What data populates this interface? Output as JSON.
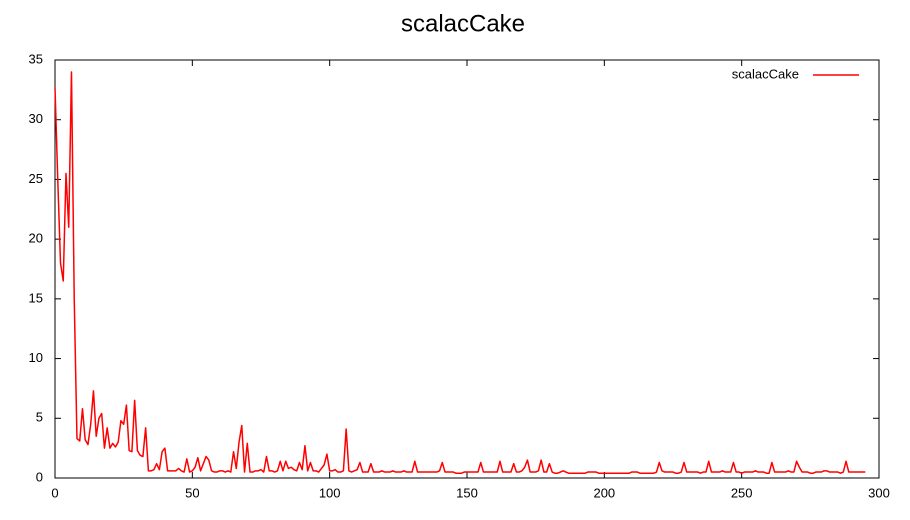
{
  "chart_data": {
    "type": "line",
    "title": "scalacCake",
    "legend": "top-right",
    "grid": false,
    "xlim": [
      0,
      300
    ],
    "xticks": [
      0,
      50,
      100,
      150,
      200,
      250,
      300
    ],
    "ylim": [
      0,
      35
    ],
    "yticks": [
      0,
      5,
      10,
      15,
      20,
      25,
      30,
      35
    ],
    "x": [
      0,
      1,
      2,
      3,
      4,
      5,
      6,
      7,
      8,
      9,
      10,
      11,
      12,
      13,
      14,
      15,
      16,
      17,
      18,
      19,
      20,
      21,
      22,
      23,
      24,
      25,
      26,
      27,
      28,
      29,
      30,
      31,
      32,
      33,
      34,
      35,
      36,
      37,
      38,
      39,
      40,
      41,
      42,
      43,
      44,
      45,
      46,
      47,
      48,
      49,
      50,
      51,
      52,
      53,
      54,
      55,
      56,
      57,
      58,
      59,
      60,
      61,
      62,
      63,
      64,
      65,
      66,
      67,
      68,
      69,
      70,
      71,
      72,
      73,
      74,
      75,
      76,
      77,
      78,
      79,
      80,
      81,
      82,
      83,
      84,
      85,
      86,
      87,
      88,
      89,
      90,
      91,
      92,
      93,
      94,
      95,
      96,
      97,
      98,
      99,
      100,
      101,
      102,
      103,
      104,
      105,
      106,
      107,
      108,
      109,
      110,
      111,
      112,
      113,
      114,
      115,
      116,
      117,
      118,
      119,
      120,
      121,
      122,
      123,
      124,
      125,
      126,
      127,
      128,
      129,
      130,
      131,
      132,
      133,
      134,
      135,
      136,
      137,
      138,
      139,
      140,
      141,
      142,
      143,
      144,
      145,
      146,
      147,
      148,
      149,
      150,
      151,
      152,
      153,
      154,
      155,
      156,
      157,
      158,
      159,
      160,
      161,
      162,
      163,
      164,
      165,
      166,
      167,
      168,
      169,
      170,
      171,
      172,
      173,
      174,
      175,
      176,
      177,
      178,
      179,
      180,
      181,
      182,
      183,
      184,
      185,
      186,
      187,
      188,
      189,
      190,
      191,
      192,
      193,
      194,
      195,
      196,
      197,
      198,
      199,
      200,
      201,
      202,
      203,
      204,
      205,
      206,
      207,
      208,
      209,
      210,
      211,
      212,
      213,
      214,
      215,
      216,
      217,
      218,
      219,
      220,
      221,
      222,
      223,
      224,
      225,
      226,
      227,
      228,
      229,
      230,
      231,
      232,
      233,
      234,
      235,
      236,
      237,
      238,
      239,
      240,
      241,
      242,
      243,
      244,
      245,
      246,
      247,
      248,
      249,
      250,
      251,
      252,
      253,
      254,
      255,
      256,
      257,
      258,
      259,
      260,
      261,
      262,
      263,
      264,
      265,
      266,
      267,
      268,
      269,
      270,
      271,
      272,
      273,
      274,
      275,
      276,
      277,
      278,
      279,
      280,
      281,
      282,
      283,
      284,
      285,
      286,
      287,
      288,
      289,
      290,
      291,
      292,
      293,
      294,
      295
    ],
    "series": [
      {
        "name": "scalacCake",
        "color": "#ff0000",
        "values": [
          32.7,
          25,
          18,
          16.5,
          25.5,
          21,
          34,
          15,
          3.3,
          3.1,
          5.8,
          3.2,
          2.8,
          4.5,
          7.3,
          3.5,
          5,
          5.4,
          2.5,
          4.2,
          2.5,
          2.9,
          2.6,
          3,
          4.8,
          4.5,
          6.1,
          2.3,
          2.2,
          6.5,
          2.3,
          1.9,
          1.8,
          4.2,
          0.6,
          0.6,
          0.7,
          1.2,
          0.7,
          2.2,
          2.5,
          0.6,
          0.6,
          0.6,
          0.6,
          0.8,
          0.6,
          0.5,
          1.6,
          0.5,
          0.6,
          0.9,
          1.7,
          0.6,
          1.2,
          1.8,
          1.5,
          0.6,
          0.5,
          0.5,
          0.6,
          0.6,
          0.5,
          0.6,
          0.5,
          2.2,
          0.8,
          3,
          4.4,
          0.5,
          2.9,
          0.5,
          0.5,
          0.6,
          0.6,
          0.7,
          0.5,
          1.8,
          0.6,
          0.6,
          0.5,
          0.6,
          1.4,
          0.6,
          1.4,
          0.8,
          0.9,
          0.7,
          0.6,
          1.3,
          0.7,
          2.7,
          0.6,
          1.3,
          0.6,
          0.6,
          0.5,
          0.8,
          1.1,
          2,
          0.6,
          0.6,
          0.7,
          0.5,
          0.5,
          0.6,
          4.1,
          0.6,
          0.5,
          0.6,
          0.7,
          1.3,
          0.5,
          0.5,
          0.5,
          1.2,
          0.5,
          0.5,
          0.5,
          0.6,
          0.5,
          0.5,
          0.5,
          0.6,
          0.5,
          0.5,
          0.5,
          0.6,
          0.5,
          0.5,
          0.5,
          1.4,
          0.5,
          0.5,
          0.5,
          0.5,
          0.5,
          0.5,
          0.5,
          0.5,
          0.6,
          1.3,
          0.5,
          0.5,
          0.5,
          0.5,
          0.4,
          0.4,
          0.4,
          0.5,
          0.5,
          0.5,
          0.5,
          0.5,
          0.5,
          1.3,
          0.5,
          0.5,
          0.5,
          0.5,
          0.5,
          0.5,
          1.4,
          0.5,
          0.5,
          0.5,
          0.5,
          1.2,
          0.5,
          0.5,
          0.6,
          0.9,
          1.5,
          0.5,
          0.5,
          0.5,
          0.6,
          1.5,
          0.5,
          0.5,
          1.2,
          0.5,
          0.4,
          0.4,
          0.5,
          0.6,
          0.5,
          0.4,
          0.4,
          0.4,
          0.4,
          0.4,
          0.4,
          0.4,
          0.5,
          0.5,
          0.5,
          0.5,
          0.4,
          0.4,
          0.4,
          0.4,
          0.4,
          0.4,
          0.4,
          0.4,
          0.4,
          0.4,
          0.4,
          0.4,
          0.5,
          0.5,
          0.5,
          0.4,
          0.4,
          0.4,
          0.4,
          0.4,
          0.4,
          0.5,
          1.3,
          0.6,
          0.5,
          0.5,
          0.5,
          0.5,
          0.4,
          0.4,
          0.5,
          1.3,
          0.5,
          0.5,
          0.5,
          0.5,
          0.5,
          0.4,
          0.5,
          0.5,
          1.4,
          0.5,
          0.5,
          0.5,
          0.5,
          0.6,
          0.5,
          0.5,
          0.5,
          1.3,
          0.5,
          0.5,
          0.4,
          0.5,
          0.5,
          0.5,
          0.5,
          0.6,
          0.5,
          0.5,
          0.5,
          0.4,
          0.4,
          1.3,
          0.5,
          0.5,
          0.5,
          0.5,
          0.5,
          0.6,
          0.5,
          0.5,
          1.4,
          0.9,
          0.5,
          0.5,
          0.5,
          0.4,
          0.4,
          0.5,
          0.5,
          0.5,
          0.6,
          0.6,
          0.5,
          0.5,
          0.5,
          0.5,
          0.4,
          0.5,
          1.4,
          0.5,
          0.5,
          0.5,
          0.5,
          0.5,
          0.5,
          0.5
        ]
      }
    ]
  }
}
